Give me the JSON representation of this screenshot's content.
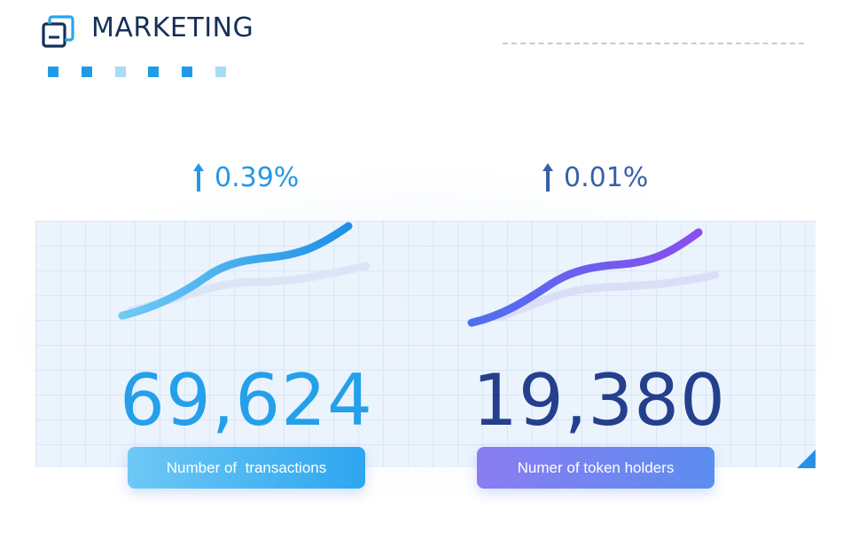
{
  "header": {
    "title": "MARKETING",
    "icon": "stacked-windows-icon"
  },
  "colors": {
    "title": "#15305a",
    "accent_blue": "#2597e6",
    "accent_navy": "#243f8c",
    "accent_purple": "#7c4ff0"
  },
  "metrics": [
    {
      "change": "0.39%",
      "value": "69,624",
      "label": "Number of  transactions",
      "trend_icon": "arrow-up-icon"
    },
    {
      "change": "0.01%",
      "value": "19,380",
      "label": "Numer of token holders",
      "trend_icon": "arrow-up-icon"
    }
  ]
}
